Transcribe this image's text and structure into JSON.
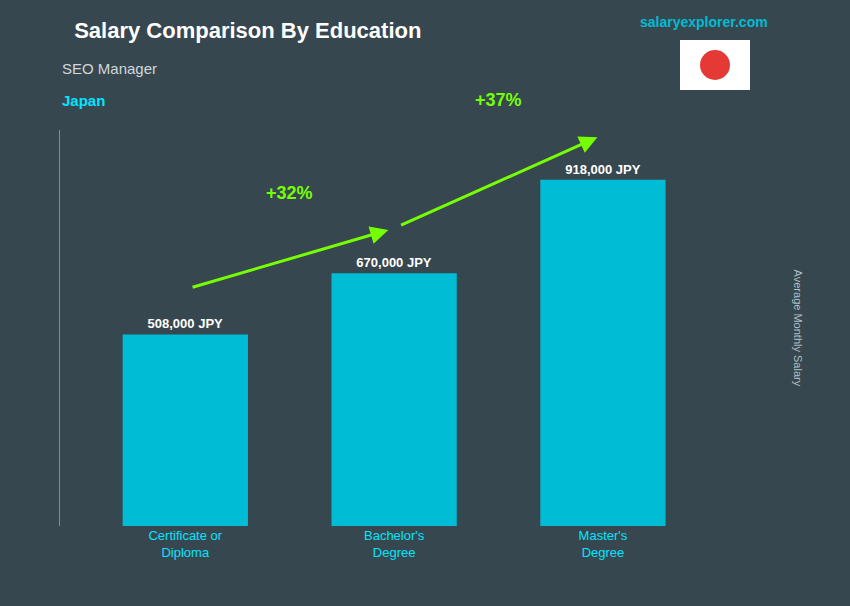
{
  "chart_data": {
    "type": "bar",
    "title": "Salary Comparison By Education",
    "subtitle": "SEO Manager",
    "country": "Japan",
    "watermark": "salaryexplorer.com",
    "ylabel": "Average Monthly Salary",
    "categories": [
      "Certificate or\nDiploma",
      "Bachelor's\nDegree",
      "Master's\nDegree"
    ],
    "values": [
      508000,
      670000,
      918000
    ],
    "value_labels": [
      "508,000 JPY",
      "670,000 JPY",
      "918,000 JPY"
    ],
    "data_labels": true,
    "color": "#00bcd4",
    "ylim": [
      0,
      1050000
    ],
    "tick_labels": "x",
    "grid": false,
    "annotations": [
      {
        "text": "+32%",
        "from": 0,
        "to": 1
      },
      {
        "text": "+37%",
        "from": 1,
        "to": 2
      }
    ]
  }
}
